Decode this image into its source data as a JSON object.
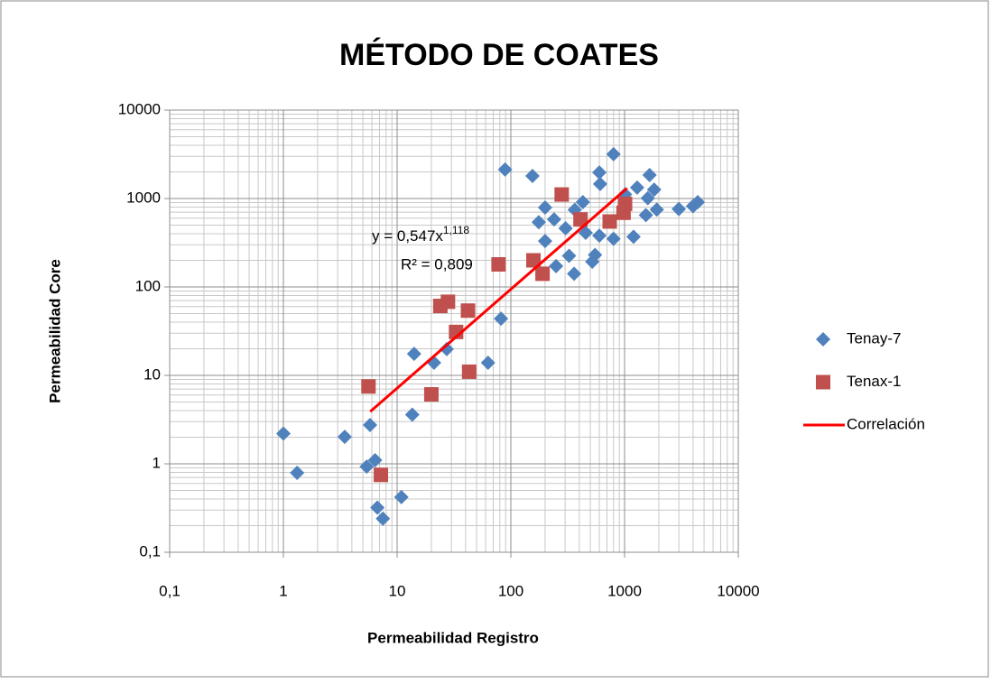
{
  "chart_data": {
    "type": "scatter",
    "title": "MÉTODO DE COATES",
    "x_label": "Permeabilidad Registro",
    "y_label": "Permeabilidad Core",
    "log_x": true,
    "log_y": true,
    "grid": true,
    "minor_grid": true,
    "legend": "right",
    "xlim": [
      0.1,
      10000
    ],
    "ylim": [
      0.1,
      10000
    ],
    "xticks": [
      {
        "value": 0.1,
        "label": "0,1"
      },
      1,
      10,
      100,
      1000,
      10000
    ],
    "yticks": [
      {
        "value": 0.1,
        "label": "0,1"
      },
      1,
      10,
      100,
      1000,
      10000
    ],
    "series": [
      {
        "name": "Tenay-7",
        "color": "#4f81bd",
        "marker": "diamond",
        "x": [
          1.0,
          1.32,
          3.46,
          5.78,
          5.4,
          6.4,
          6.7,
          7.5,
          10.9,
          13.6,
          14.1,
          21.1,
          27.3,
          63,
          82,
          89,
          155,
          200,
          176,
          200,
          240,
          250,
          303,
          365,
          325,
          360,
          430,
          455,
          520,
          550,
          600,
          610,
          600,
          800,
          800,
          1010,
          1200,
          1290,
          1540,
          1600,
          1660,
          1820,
          1920,
          3000,
          4000,
          4400
        ],
        "values": [
          2.2,
          0.79,
          2.02,
          2.75,
          0.93,
          1.1,
          0.32,
          0.24,
          0.42,
          3.6,
          17.5,
          13.9,
          19.8,
          13.9,
          43.8,
          2130,
          1800,
          790,
          540,
          330,
          580,
          172,
          460,
          745,
          225,
          141,
          910,
          410,
          193,
          230,
          1970,
          1460,
          380,
          350,
          3170,
          1110,
          370,
          1330,
          650,
          1010,
          1840,
          1260,
          750,
          760,
          820,
          910
        ]
      },
      {
        "name": "Tenax-1",
        "color": "#c0504d",
        "marker": "square",
        "x": [
          5.6,
          7.2,
          20,
          24,
          28,
          33,
          42,
          43,
          78,
          158,
          190,
          280,
          410,
          740,
          980,
          1010
        ],
        "values": [
          7.5,
          0.75,
          6.1,
          61,
          68,
          31,
          54,
          11,
          180,
          200,
          141,
          1110,
          580,
          550,
          690,
          870
        ]
      },
      {
        "name": "Correlación",
        "color": "#ff0000",
        "type": "line",
        "x": [
          5.8,
          1050
        ],
        "values": [
          3.9,
          1307
        ]
      }
    ],
    "annotations": {
      "equation": "y = 0,547x",
      "equation_exponent": "1,118",
      "r_squared": "R² = 0,809"
    }
  }
}
